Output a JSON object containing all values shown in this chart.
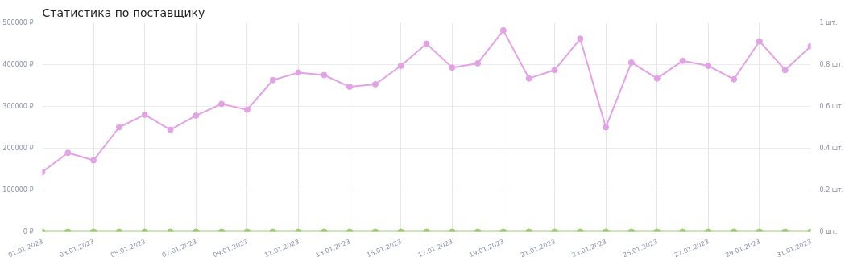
{
  "chart_data": {
    "type": "line",
    "title": "Статистика по поставщику",
    "categories": [
      "01.01.2023",
      null,
      "03.01.2023",
      null,
      "05.01.2023",
      null,
      "07.01.2023",
      null,
      "09.01.2023",
      null,
      "11.01.2023",
      null,
      "13.01.2023",
      null,
      "15.01.2023",
      null,
      "17.01.2023",
      null,
      "19.01.2023",
      null,
      "21.01.2023",
      null,
      "23.01.2023",
      null,
      "25.01.2023",
      null,
      "27.01.2023",
      null,
      "29.01.2023",
      null,
      "31.01.2023"
    ],
    "series": [
      {
        "color": "#e3a2e6",
        "values": [
          143000,
          189000,
          171000,
          250000,
          280000,
          244000,
          278000,
          306000,
          292000,
          363000,
          381000,
          375000,
          347000,
          353000,
          397000,
          450000,
          393000,
          403000,
          482000,
          367000,
          387000,
          462000,
          250000,
          405000,
          367000,
          409000,
          397000,
          365000,
          456000,
          387000,
          444000
        ]
      },
      {
        "color": "#9dcc6e",
        "axis": "y2",
        "values": [
          0,
          0,
          0,
          0,
          0,
          0,
          0,
          0,
          0,
          0,
          0,
          0,
          0,
          0,
          0,
          0,
          0,
          0,
          0,
          0,
          0,
          0,
          0,
          0,
          0,
          0,
          0,
          0,
          0,
          0,
          0
        ]
      }
    ],
    "ylim": [
      0,
      500000
    ],
    "yticks": [
      {
        "value": 0,
        "label": "0 ₽"
      },
      {
        "value": 100000,
        "label": "100000 ₽"
      },
      {
        "value": 200000,
        "label": "200000 ₽"
      },
      {
        "value": 300000,
        "label": "300000 ₽"
      },
      {
        "value": 400000,
        "label": "400000 ₽"
      },
      {
        "value": 500000,
        "label": "500000 ₽"
      }
    ],
    "y2lim": [
      0,
      1
    ],
    "y2ticks": [
      {
        "value": 0,
        "label": "0 шт."
      },
      {
        "value": 0.2,
        "label": "0.2 шт."
      },
      {
        "value": 0.4,
        "label": "0.4 шт."
      },
      {
        "value": 0.6,
        "label": "0.6 шт."
      },
      {
        "value": 0.8,
        "label": "0.8 шт."
      },
      {
        "value": 1,
        "label": "1 шт."
      }
    ],
    "grid": true,
    "marker": "circle",
    "line_style": "solid"
  }
}
